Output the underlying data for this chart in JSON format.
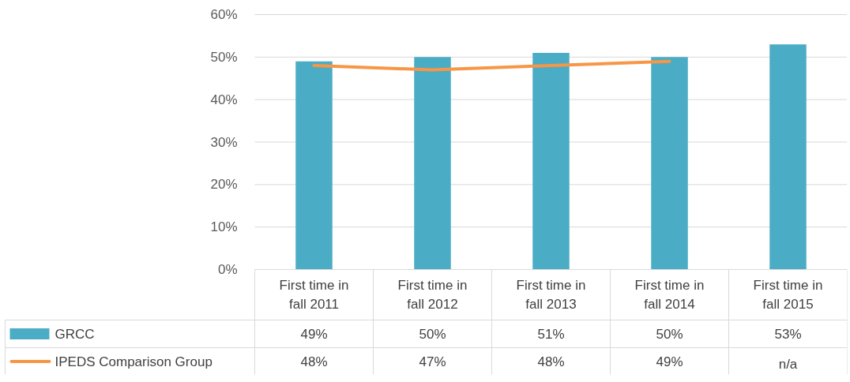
{
  "chart_data": {
    "type": "bar",
    "categories": [
      "First time in fall 2011",
      "First time in fall 2012",
      "First time in fall 2013",
      "First time in fall 2014",
      "First time in fall 2015"
    ],
    "series": [
      {
        "name": "GRCC",
        "color": "#4bacc6",
        "values": [
          49,
          50,
          51,
          50,
          53
        ],
        "value_labels": [
          "49%",
          "50%",
          "51%",
          "50%",
          "53%"
        ]
      },
      {
        "name": "IPEDS Comparison Group",
        "type": "line",
        "color": "#f79646",
        "values": [
          48,
          47,
          48,
          49,
          null
        ],
        "value_labels": [
          "48%",
          "47%",
          "48%",
          "49%",
          "n/a"
        ]
      }
    ],
    "ylim": [
      0,
      60
    ],
    "yticks": [
      {
        "value": 0,
        "label": "0%"
      },
      {
        "value": 10,
        "label": "10%"
      },
      {
        "value": 20,
        "label": "20%"
      },
      {
        "value": 30,
        "label": "30%"
      },
      {
        "value": 40,
        "label": "40%"
      },
      {
        "value": 50,
        "label": "50%"
      },
      {
        "value": 60,
        "label": "60%"
      }
    ],
    "grid": "y",
    "legend": "bottom",
    "marker": "none",
    "line_style": "solid"
  }
}
